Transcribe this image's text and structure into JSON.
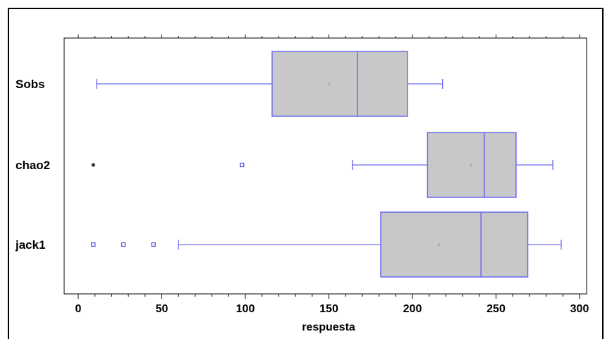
{
  "chart_data": {
    "type": "boxplot",
    "orientation": "horizontal",
    "xlabel": "respuesta",
    "xlim": [
      -8,
      302
    ],
    "xticks": [
      0,
      50,
      100,
      150,
      200,
      250,
      300
    ],
    "xtick_labels": [
      "0",
      "50",
      "100",
      "150",
      "200",
      "250",
      "300"
    ],
    "categories": [
      "Sobs",
      "chao2",
      "jack1"
    ],
    "boxes": [
      {
        "name": "Sobs",
        "whisker_low": 11,
        "q1": 116,
        "median": 167,
        "q3": 197,
        "whisker_high": 218,
        "mean": 150,
        "outliers": [],
        "far_outliers": []
      },
      {
        "name": "chao2",
        "whisker_low": 164,
        "q1": 209,
        "median": 243,
        "q3": 262,
        "whisker_high": 284,
        "mean": 235,
        "outliers": [
          98
        ],
        "far_outliers": [
          9
        ]
      },
      {
        "name": "jack1",
        "whisker_low": 60,
        "q1": 181,
        "median": 241,
        "q3": 269,
        "whisker_high": 289,
        "mean": 216,
        "outliers": [
          9,
          27,
          45
        ],
        "far_outliers": []
      }
    ],
    "colors": {
      "box_fill": "#c8c8c8",
      "box_stroke": "#6a6af0",
      "outlier": "#5555dd",
      "far_outlier": "#333333",
      "mean": "#999999",
      "axis": "#000000"
    }
  }
}
